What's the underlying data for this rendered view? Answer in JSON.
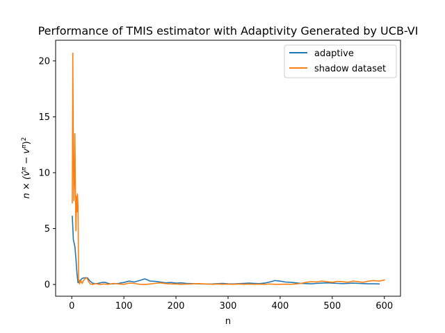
{
  "chart_data": {
    "type": "line",
    "title": "Performance of TMIS estimator with Adaptivity Generated by UCB-VI",
    "xlabel": "n",
    "ylabel": "n × (v̂^π − v^π)^2",
    "ylabel_parts": {
      "prefix": "n × (",
      "vhat": "v̂",
      "sup1": "π",
      "minus": " − v",
      "sup2": "π",
      "close": ")",
      "sup3": "2"
    },
    "xlim": [
      -31,
      631
    ],
    "ylim": [
      -1.05,
      21.85
    ],
    "xticks": [
      0,
      100,
      200,
      300,
      400,
      500,
      600
    ],
    "xtick_labels": [
      "0",
      "100",
      "200",
      "300",
      "400",
      "500",
      "600"
    ],
    "yticks": [
      0,
      5,
      10,
      15,
      20
    ],
    "ytick_labels": [
      "0",
      "5",
      "10",
      "15",
      "20"
    ],
    "grid": false,
    "legend_position": "top-right",
    "series": [
      {
        "name": "adaptive",
        "color": "#1f77b4",
        "x": [
          1,
          3,
          6,
          8,
          10,
          12,
          15,
          20,
          25,
          30,
          35,
          40,
          45,
          50,
          55,
          60,
          65,
          70,
          75,
          80,
          85,
          90,
          95,
          100,
          110,
          120,
          130,
          140,
          145,
          150,
          160,
          170,
          180,
          190,
          200,
          210,
          220,
          230,
          240,
          250,
          260,
          270,
          280,
          290,
          300,
          310,
          320,
          330,
          340,
          350,
          360,
          370,
          380,
          390,
          400,
          410,
          420,
          430,
          440,
          450,
          460,
          470,
          480,
          490,
          500,
          510,
          520,
          530,
          540,
          550,
          560,
          570,
          580,
          590
        ],
        "y": [
          6.1,
          4.0,
          3.4,
          2.3,
          1.0,
          0.15,
          0.3,
          0.55,
          0.6,
          0.6,
          0.3,
          0.12,
          0.08,
          0.1,
          0.15,
          0.2,
          0.18,
          0.1,
          0.05,
          0.06,
          0.08,
          0.1,
          0.15,
          0.18,
          0.3,
          0.22,
          0.35,
          0.5,
          0.42,
          0.3,
          0.28,
          0.22,
          0.15,
          0.18,
          0.12,
          0.15,
          0.1,
          0.08,
          0.06,
          0.05,
          0.04,
          0.05,
          0.08,
          0.1,
          0.06,
          0.05,
          0.08,
          0.1,
          0.12,
          0.1,
          0.08,
          0.12,
          0.22,
          0.35,
          0.3,
          0.22,
          0.2,
          0.15,
          0.1,
          0.08,
          0.06,
          0.1,
          0.12,
          0.15,
          0.12,
          0.1,
          0.08,
          0.1,
          0.12,
          0.1,
          0.08,
          0.06,
          0.06,
          0.05
        ]
      },
      {
        "name": "shadow dataset",
        "color": "#ff7f0e",
        "x": [
          1,
          2,
          3,
          4,
          5,
          6,
          7,
          8,
          9,
          10,
          11,
          12,
          13,
          14,
          15,
          17,
          20,
          22,
          25,
          28,
          30,
          33,
          36,
          40,
          45,
          50,
          55,
          60,
          70,
          80,
          90,
          100,
          110,
          120,
          130,
          140,
          150,
          160,
          170,
          180,
          190,
          200,
          210,
          220,
          230,
          240,
          250,
          260,
          270,
          280,
          290,
          300,
          310,
          320,
          330,
          340,
          350,
          360,
          370,
          380,
          390,
          400,
          410,
          420,
          430,
          440,
          450,
          460,
          470,
          480,
          490,
          500,
          510,
          520,
          530,
          540,
          550,
          560,
          570,
          580,
          590,
          600
        ],
        "y": [
          7.3,
          20.7,
          12.0,
          7.5,
          9.5,
          13.5,
          8.5,
          4.8,
          7.9,
          6.5,
          8.1,
          7.0,
          0.35,
          0.4,
          0.05,
          0.35,
          0.1,
          0.3,
          0.5,
          0.6,
          0.5,
          0.2,
          0.05,
          0.0,
          0.08,
          0.03,
          0.0,
          0.05,
          0.02,
          0.1,
          0.05,
          0.02,
          0.12,
          0.1,
          0.02,
          0.0,
          0.05,
          0.1,
          0.15,
          0.08,
          0.05,
          0.05,
          0.02,
          0.04,
          0.05,
          0.08,
          0.06,
          0.05,
          0.02,
          0.05,
          0.02,
          0.04,
          0.02,
          0.05,
          0.02,
          0.04,
          0.02,
          0.03,
          0.02,
          0.05,
          0.02,
          0.02,
          0.03,
          0.02,
          0.05,
          0.1,
          0.2,
          0.25,
          0.22,
          0.3,
          0.25,
          0.2,
          0.28,
          0.25,
          0.2,
          0.3,
          0.25,
          0.2,
          0.3,
          0.35,
          0.3,
          0.4
        ]
      }
    ]
  }
}
